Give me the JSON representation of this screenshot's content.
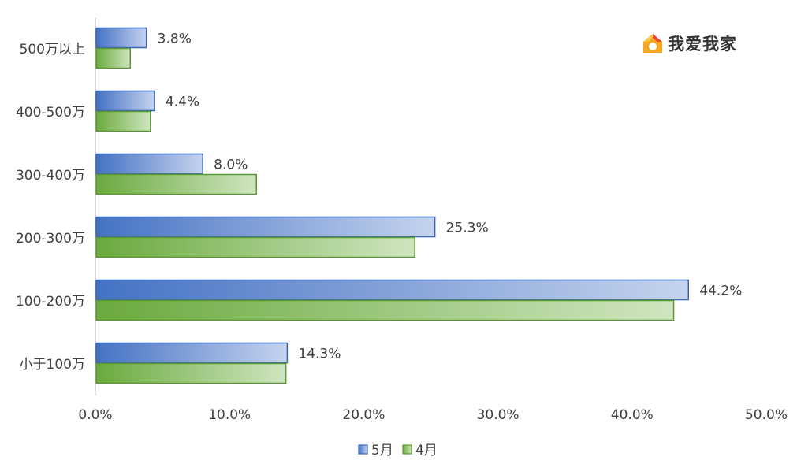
{
  "chart_data": {
    "type": "bar",
    "orientation": "horizontal",
    "categories": [
      "500万以上",
      "400-500万",
      "300-400万",
      "200-300万",
      "100-200万",
      "小于100万"
    ],
    "series": [
      {
        "name": "5月",
        "values": [
          3.8,
          4.4,
          8.0,
          25.3,
          44.2,
          14.3
        ],
        "color": "#4472c4",
        "data_labels": [
          "3.8%",
          "4.4%",
          "8.0%",
          "25.3%",
          "44.2%",
          "14.3%"
        ]
      },
      {
        "name": "4月",
        "values": [
          2.6,
          4.1,
          12.0,
          23.8,
          43.1,
          14.2
        ],
        "color": "#70ad47"
      }
    ],
    "xlim": [
      0,
      50
    ],
    "x_ticks": [
      "0.0%",
      "10.0%",
      "20.0%",
      "30.0%",
      "40.0%",
      "50.0%"
    ],
    "x_tick_values": [
      0,
      10,
      20,
      30,
      40,
      50
    ],
    "grid": false,
    "legend_position": "bottom"
  },
  "watermark": {
    "text": "我爱我家",
    "icon": "house-logo-icon"
  }
}
